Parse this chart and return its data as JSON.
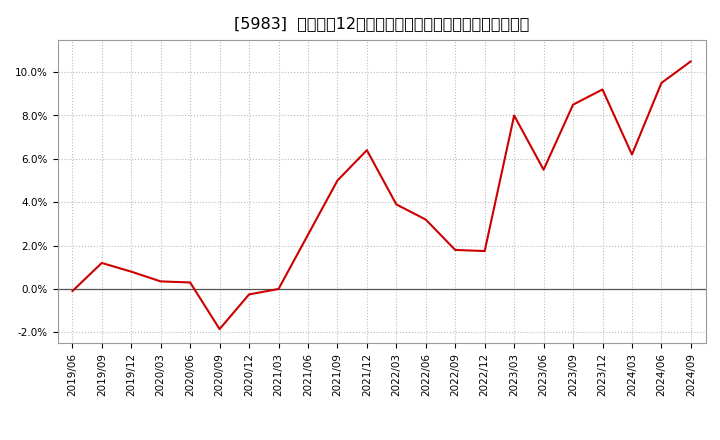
{
  "title": "[5983]  売上高の12か月移動合計の対前年同期増減率の推移",
  "x_labels": [
    "2019/06",
    "2019/09",
    "2019/12",
    "2020/03",
    "2020/06",
    "2020/09",
    "2020/12",
    "2021/03",
    "2021/06",
    "2021/09",
    "2021/12",
    "2022/03",
    "2022/06",
    "2022/09",
    "2022/12",
    "2023/03",
    "2023/06",
    "2023/09",
    "2023/12",
    "2024/03",
    "2024/06",
    "2024/09"
  ],
  "y_values": [
    -0.1,
    1.2,
    0.8,
    0.35,
    0.3,
    -1.85,
    -0.25,
    0.0,
    2.5,
    5.0,
    6.4,
    3.9,
    3.2,
    1.8,
    1.75,
    8.0,
    5.5,
    8.5,
    9.2,
    6.2,
    9.5,
    10.5
  ],
  "line_color": "#cc0000",
  "bg_color": "#ffffff",
  "plot_bg_color": "#ffffff",
  "grid_color": "#bbbbbb",
  "zero_line_color": "#555555",
  "ylim_min": -2.5,
  "ylim_max": 11.5,
  "yticks": [
    -2.0,
    0.0,
    2.0,
    4.0,
    6.0,
    8.0,
    10.0
  ],
  "title_fontsize": 11.5,
  "tick_fontsize": 7.5
}
